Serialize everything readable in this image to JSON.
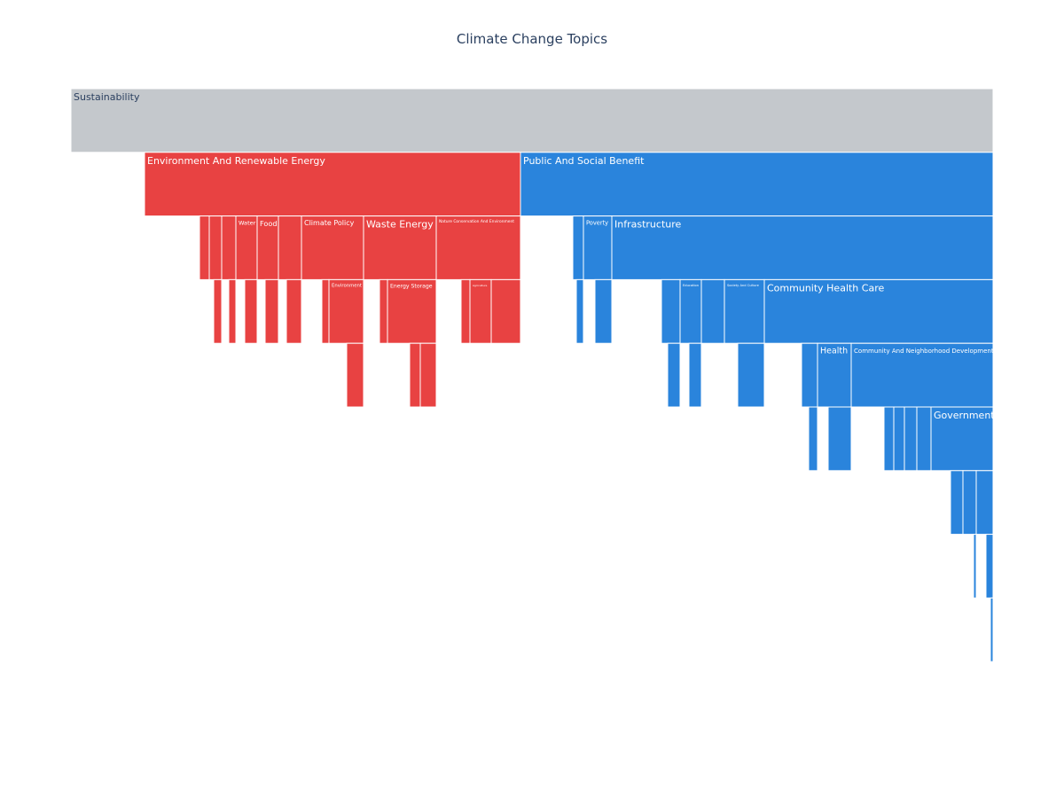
{
  "chart_data": {
    "type": "icicle",
    "title": "Climate Change Topics",
    "nodes": [
      {
        "label": "Sustainability",
        "parent": null,
        "value": 1040,
        "color": "#c4c8cc"
      },
      {
        "label": "Environment And Renewable Energy",
        "parent": 0,
        "value": 424,
        "color": "#e84242"
      },
      {
        "label": "Public And Social Benefit",
        "parent": 0,
        "value": 533,
        "color": "#2a84dc"
      },
      {
        "label": null,
        "parent": 1,
        "value": 11,
        "color": "#e84242"
      },
      {
        "label": null,
        "parent": 1,
        "value": 14,
        "color": "#e84242"
      },
      {
        "label": null,
        "parent": 1,
        "value": 16,
        "color": "#e84242"
      },
      {
        "label": "Water",
        "parent": 1,
        "value": 24,
        "color": "#e84242"
      },
      {
        "label": "Food",
        "parent": 1,
        "value": 24,
        "color": "#e84242"
      },
      {
        "label": null,
        "parent": 1,
        "value": 26,
        "color": "#e84242"
      },
      {
        "label": "Climate Policy",
        "parent": 1,
        "value": 70,
        "color": "#e84242"
      },
      {
        "label": "Waste Energy",
        "parent": 1,
        "value": 82,
        "color": "#e84242"
      },
      {
        "label": "Nature Conservation And Environment",
        "parent": 1,
        "value": 95,
        "color": "#e84242"
      },
      {
        "label": null,
        "parent": 2,
        "value": 12,
        "color": "#2a84dc"
      },
      {
        "label": "Poverty",
        "parent": 2,
        "value": 32,
        "color": "#2a84dc"
      },
      {
        "label": "Infrastructure",
        "parent": 2,
        "value": 430,
        "color": "#2a84dc"
      },
      {
        "label": null,
        "parent": 4,
        "value": 9,
        "color": "#e84242"
      },
      {
        "label": null,
        "parent": 5,
        "value": 8,
        "color": "#e84242"
      },
      {
        "label": null,
        "parent": 6,
        "value": 14,
        "color": "#e84242"
      },
      {
        "label": null,
        "parent": 7,
        "value": 15,
        "color": "#e84242"
      },
      {
        "label": null,
        "parent": 8,
        "value": 17,
        "color": "#e84242"
      },
      {
        "label": null,
        "parent": 9,
        "value": 8,
        "color": "#e84242"
      },
      {
        "label": "Environment",
        "parent": 9,
        "value": 39,
        "color": "#e84242"
      },
      {
        "label": null,
        "parent": 10,
        "value": 9,
        "color": "#e84242"
      },
      {
        "label": "Energy Storage",
        "parent": 10,
        "value": 55,
        "color": "#e84242"
      },
      {
        "label": null,
        "parent": 11,
        "value": 10,
        "color": "#e84242"
      },
      {
        "label": "Agriculture",
        "parent": 11,
        "value": 24,
        "color": "#e84242"
      },
      {
        "label": null,
        "parent": 11,
        "value": 33,
        "color": "#e84242"
      },
      {
        "label": null,
        "parent": 12,
        "value": 8,
        "color": "#2a84dc"
      },
      {
        "label": null,
        "parent": 13,
        "value": 19,
        "color": "#2a84dc"
      },
      {
        "label": null,
        "parent": 14,
        "value": 21,
        "color": "#2a84dc"
      },
      {
        "label": "Education",
        "parent": 14,
        "value": 24,
        "color": "#2a84dc"
      },
      {
        "label": null,
        "parent": 14,
        "value": 26,
        "color": "#2a84dc"
      },
      {
        "label": "Society And Culture",
        "parent": 14,
        "value": 45,
        "color": "#2a84dc"
      },
      {
        "label": "Community Health Care",
        "parent": 14,
        "value": 258,
        "color": "#2a84dc"
      },
      {
        "label": null,
        "parent": 21,
        "value": 19,
        "color": "#e84242"
      },
      {
        "label": null,
        "parent": 23,
        "value": 12,
        "color": "#e84242"
      },
      {
        "label": null,
        "parent": 23,
        "value": 18,
        "color": "#e84242"
      },
      {
        "label": null,
        "parent": 29,
        "value": 14,
        "color": "#2a84dc"
      },
      {
        "label": null,
        "parent": 30,
        "value": 14,
        "color": "#2a84dc"
      },
      {
        "label": null,
        "parent": 32,
        "value": 30,
        "color": "#2a84dc"
      },
      {
        "label": null,
        "parent": 33,
        "value": 18,
        "color": "#2a84dc"
      },
      {
        "label": "Health",
        "parent": 33,
        "value": 38,
        "color": "#2a84dc"
      },
      {
        "label": "Community And Neighborhood Development",
        "parent": 33,
        "value": 160,
        "color": "#2a84dc"
      },
      {
        "label": null,
        "parent": 40,
        "value": 10,
        "color": "#2a84dc"
      },
      {
        "label": null,
        "parent": 41,
        "value": 26,
        "color": "#2a84dc"
      },
      {
        "label": null,
        "parent": 42,
        "value": 11,
        "color": "#2a84dc"
      },
      {
        "label": null,
        "parent": 42,
        "value": 12,
        "color": "#2a84dc"
      },
      {
        "label": null,
        "parent": 42,
        "value": 14,
        "color": "#2a84dc"
      },
      {
        "label": null,
        "parent": 42,
        "value": 16,
        "color": "#2a84dc"
      },
      {
        "label": "Government",
        "parent": 42,
        "value": 70,
        "color": "#2a84dc"
      },
      {
        "label": null,
        "parent": 49,
        "value": 14,
        "color": "#2a84dc"
      },
      {
        "label": null,
        "parent": 49,
        "value": 15,
        "color": "#2a84dc"
      },
      {
        "label": null,
        "parent": 49,
        "value": 19,
        "color": "#2a84dc"
      },
      {
        "label": null,
        "parent": 51,
        "value": 3,
        "color": "#2a84dc"
      },
      {
        "label": null,
        "parent": 52,
        "value": 8,
        "color": "#2a84dc"
      },
      {
        "label": null,
        "parent": 54,
        "value": 3,
        "color": "#2a84dc"
      }
    ]
  }
}
